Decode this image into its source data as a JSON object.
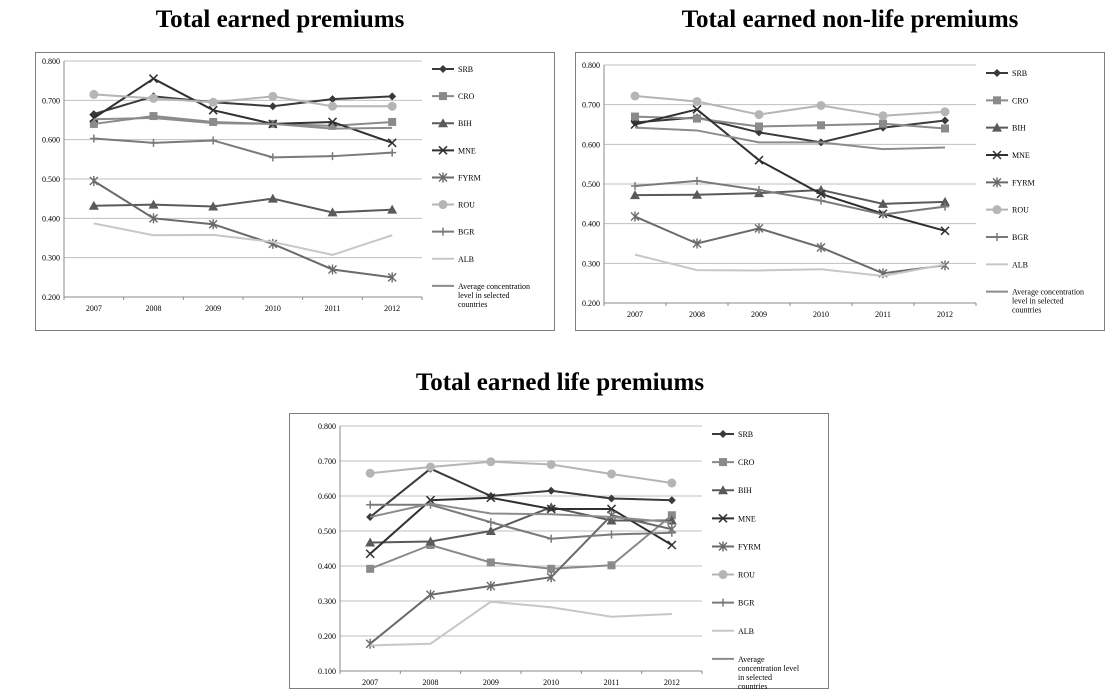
{
  "chart_data": [
    {
      "type": "line",
      "title": "Total earned premiums",
      "categories": [
        "2007",
        "2008",
        "2009",
        "2010",
        "2011",
        "2012"
      ],
      "ylim": [
        0.2,
        0.8
      ],
      "yticks": [
        "0.200",
        "0.300",
        "0.400",
        "0.500",
        "0.600",
        "0.700",
        "0.800"
      ],
      "grid": true,
      "legend": "right",
      "series": [
        {
          "name": "SRB",
          "values": [
            0.665,
            0.71,
            0.695,
            0.685,
            0.703,
            0.71
          ],
          "color": "#3a3a3a",
          "marker": "diamond"
        },
        {
          "name": "CRO",
          "values": [
            0.64,
            0.66,
            0.645,
            0.64,
            0.635,
            0.645
          ],
          "color": "#8a8a8a",
          "marker": "square"
        },
        {
          "name": "BIH",
          "values": [
            0.432,
            0.435,
            0.43,
            0.45,
            0.415,
            0.422
          ],
          "color": "#5a5a5a",
          "marker": "triangle"
        },
        {
          "name": "MNE",
          "values": [
            0.655,
            0.755,
            0.675,
            0.64,
            0.645,
            0.592
          ],
          "color": "#303030",
          "marker": "x"
        },
        {
          "name": "FYRM",
          "values": [
            0.495,
            0.4,
            0.385,
            0.335,
            0.27,
            0.25
          ],
          "color": "#6a6a6a",
          "marker": "star"
        },
        {
          "name": "ROU",
          "values": [
            0.715,
            0.705,
            0.695,
            0.71,
            0.685,
            0.685
          ],
          "color": "#b5b5b5",
          "marker": "circle"
        },
        {
          "name": "BGR",
          "values": [
            0.603,
            0.592,
            0.598,
            0.555,
            0.558,
            0.567
          ],
          "color": "#7a7a7a",
          "marker": "plus"
        },
        {
          "name": "ALB",
          "values": [
            0.387,
            0.357,
            0.358,
            0.34,
            0.307,
            0.357
          ],
          "color": "#c7c7c7",
          "marker": "none"
        },
        {
          "name": "Average concentration level in selected countries",
          "values": [
            0.652,
            0.655,
            0.642,
            0.64,
            0.628,
            0.63
          ],
          "color": "#8c8c8c",
          "marker": "none"
        }
      ]
    },
    {
      "type": "line",
      "title": "Total earned non-life premiums",
      "categories": [
        "2007",
        "2008",
        "2009",
        "2010",
        "2011",
        "2012"
      ],
      "ylim": [
        0.2,
        0.8
      ],
      "yticks": [
        "0.200",
        "0.300",
        "0.400",
        "0.500",
        "0.600",
        "0.700",
        "0.800"
      ],
      "grid": true,
      "legend": "right",
      "series": [
        {
          "name": "SRB",
          "values": [
            0.655,
            0.668,
            0.63,
            0.605,
            0.642,
            0.66
          ],
          "color": "#3a3a3a",
          "marker": "diamond"
        },
        {
          "name": "CRO",
          "values": [
            0.67,
            0.665,
            0.645,
            0.648,
            0.652,
            0.64
          ],
          "color": "#8a8a8a",
          "marker": "square"
        },
        {
          "name": "BIH",
          "values": [
            0.472,
            0.473,
            0.477,
            0.485,
            0.45,
            0.455
          ],
          "color": "#5a5a5a",
          "marker": "triangle"
        },
        {
          "name": "MNE",
          "values": [
            0.65,
            0.688,
            0.56,
            0.475,
            0.425,
            0.382
          ],
          "color": "#303030",
          "marker": "x"
        },
        {
          "name": "FYRM",
          "values": [
            0.418,
            0.35,
            0.388,
            0.34,
            0.275,
            0.295
          ],
          "color": "#6a6a6a",
          "marker": "star"
        },
        {
          "name": "ROU",
          "values": [
            0.722,
            0.708,
            0.675,
            0.698,
            0.672,
            0.682
          ],
          "color": "#b5b5b5",
          "marker": "circle"
        },
        {
          "name": "BGR",
          "values": [
            0.495,
            0.508,
            0.485,
            0.458,
            0.423,
            0.443
          ],
          "color": "#7a7a7a",
          "marker": "plus"
        },
        {
          "name": "ALB",
          "values": [
            0.322,
            0.283,
            0.282,
            0.285,
            0.268,
            0.297
          ],
          "color": "#c7c7c7",
          "marker": "none"
        },
        {
          "name": "Average concentration level in selected countries",
          "values": [
            0.642,
            0.635,
            0.605,
            0.605,
            0.588,
            0.592
          ],
          "color": "#8c8c8c",
          "marker": "none"
        }
      ]
    },
    {
      "type": "line",
      "title": "Total earned life premiums",
      "categories": [
        "2007",
        "2008",
        "2009",
        "2010",
        "2011",
        "2012"
      ],
      "ylim": [
        0.1,
        0.8
      ],
      "yticks": [
        "0.100",
        "0.200",
        "0.300",
        "0.400",
        "0.500",
        "0.600",
        "0.700",
        "0.800"
      ],
      "grid": true,
      "legend": "right",
      "series": [
        {
          "name": "SRB",
          "values": [
            0.54,
            0.678,
            0.6,
            0.615,
            0.593,
            0.588
          ],
          "color": "#3a3a3a",
          "marker": "diamond"
        },
        {
          "name": "CRO",
          "values": [
            0.392,
            0.46,
            0.41,
            0.392,
            0.402,
            0.545
          ],
          "color": "#8a8a8a",
          "marker": "square"
        },
        {
          "name": "BIH",
          "values": [
            0.467,
            0.47,
            0.5,
            0.568,
            0.53,
            0.53
          ],
          "color": "#5a5a5a",
          "marker": "triangle"
        },
        {
          "name": "MNE",
          "values": [
            0.435,
            0.588,
            0.595,
            0.563,
            0.563,
            0.46
          ],
          "color": "#303030",
          "marker": "x"
        },
        {
          "name": "FYRM",
          "values": [
            0.178,
            0.318,
            0.343,
            0.368,
            0.545,
            0.505
          ],
          "color": "#6a6a6a",
          "marker": "star"
        },
        {
          "name": "ROU",
          "values": [
            0.665,
            0.683,
            0.698,
            0.69,
            0.663,
            0.637
          ],
          "color": "#b5b5b5",
          "marker": "circle"
        },
        {
          "name": "BGR",
          "values": [
            0.575,
            0.575,
            0.525,
            0.478,
            0.49,
            0.495
          ],
          "color": "#7a7a7a",
          "marker": "plus"
        },
        {
          "name": "ALB",
          "values": [
            0.173,
            0.178,
            0.298,
            0.282,
            0.255,
            0.263
          ],
          "color": "#c7c7c7",
          "marker": "none"
        },
        {
          "name": "Average concentration level in selected countries",
          "values": [
            0.54,
            0.578,
            0.55,
            0.548,
            0.54,
            0.525
          ],
          "color": "#8c8c8c",
          "marker": "none"
        }
      ]
    }
  ]
}
